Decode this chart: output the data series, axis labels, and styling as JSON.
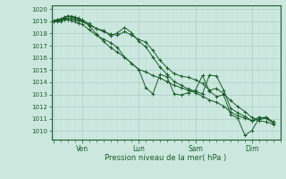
{
  "xlabel": "Pression niveau de la mer( hPa )",
  "bg_color": "#cce8de",
  "grid_color_major": "#aacccc",
  "grid_color_minor": "#bbdddd",
  "line_color": "#1a5c2a",
  "tick_label_color": "#1a5c2a",
  "axis_label_color": "#1a5c2a",
  "ylim": [
    1009.3,
    1020.3
  ],
  "yticks": [
    1010,
    1011,
    1012,
    1013,
    1014,
    1015,
    1016,
    1017,
    1018,
    1019,
    1020
  ],
  "day_ticks": [
    0,
    24,
    72,
    120,
    168
  ],
  "day_labels": [
    "",
    "Ven",
    "Lun",
    "Sam",
    "Dim"
  ],
  "xlim": [
    -2,
    192
  ],
  "lines": [
    [
      0,
      1019.0,
      3,
      1019.1,
      6,
      1019.15,
      9,
      1019.2,
      12,
      1019.25,
      15,
      1019.2,
      18,
      1019.15,
      21,
      1019.05,
      24,
      1018.95,
      30,
      1018.7,
      36,
      1018.4,
      42,
      1018.15,
      48,
      1017.95,
      54,
      1017.85,
      60,
      1018.15,
      66,
      1017.85,
      72,
      1017.5,
      78,
      1017.3,
      84,
      1016.6,
      90,
      1015.8,
      96,
      1015.2,
      102,
      1014.7,
      108,
      1014.5,
      114,
      1014.4,
      120,
      1014.2,
      126,
      1013.9,
      132,
      1013.35,
      138,
      1013.5,
      144,
      1013.05,
      150,
      1012.5,
      156,
      1012.0,
      162,
      1011.6,
      168,
      1011.1,
      174,
      1010.85,
      180,
      1010.75,
      186,
      1010.55
    ],
    [
      0,
      1019.05,
      3,
      1019.15,
      6,
      1019.2,
      9,
      1019.35,
      12,
      1019.45,
      15,
      1019.4,
      18,
      1019.35,
      21,
      1019.25,
      24,
      1019.1,
      30,
      1018.8,
      36,
      1018.4,
      42,
      1018.25,
      48,
      1017.8,
      54,
      1018.05,
      60,
      1018.5,
      66,
      1018.05,
      72,
      1017.35,
      78,
      1016.9,
      84,
      1016.05,
      90,
      1015.25,
      96,
      1014.65,
      102,
      1014.05,
      108,
      1013.75,
      114,
      1013.45,
      120,
      1013.25,
      126,
      1013.05,
      132,
      1014.6,
      138,
      1014.5,
      144,
      1013.35,
      150,
      1011.85,
      156,
      1011.5,
      162,
      1011.2,
      168,
      1010.85,
      174,
      1010.95,
      180,
      1011.05,
      186,
      1010.75
    ],
    [
      0,
      1019.0,
      3,
      1019.0,
      6,
      1019.0,
      9,
      1019.1,
      12,
      1019.15,
      15,
      1019.05,
      18,
      1018.95,
      21,
      1018.85,
      24,
      1018.75,
      30,
      1018.3,
      36,
      1017.85,
      42,
      1017.55,
      48,
      1017.25,
      54,
      1016.85,
      60,
      1016.05,
      66,
      1015.55,
      72,
      1015.05,
      78,
      1013.55,
      84,
      1013.05,
      90,
      1014.65,
      96,
      1014.45,
      102,
      1013.05,
      108,
      1012.95,
      114,
      1013.15,
      120,
      1013.35,
      126,
      1014.55,
      132,
      1013.25,
      138,
      1012.85,
      144,
      1012.95,
      150,
      1011.35,
      156,
      1011.05,
      162,
      1009.65,
      168,
      1010.05,
      174,
      1011.05,
      180,
      1011.15,
      186,
      1010.75
    ],
    [
      0,
      1019.0,
      3,
      1019.05,
      6,
      1019.1,
      9,
      1019.3,
      12,
      1019.4,
      15,
      1019.35,
      18,
      1019.25,
      21,
      1019.15,
      24,
      1019.05,
      30,
      1018.65,
      36,
      1017.95,
      42,
      1017.35,
      48,
      1016.85,
      54,
      1016.45,
      60,
      1016.05,
      66,
      1015.55,
      72,
      1015.05,
      78,
      1014.85,
      84,
      1014.55,
      90,
      1014.35,
      96,
      1014.05,
      102,
      1013.75,
      108,
      1013.55,
      114,
      1013.35,
      120,
      1013.15,
      126,
      1012.85,
      132,
      1012.55,
      138,
      1012.35,
      144,
      1012.05,
      150,
      1011.55,
      156,
      1011.25,
      162,
      1011.05,
      168,
      1010.85,
      174,
      1011.15,
      180,
      1011.05,
      186,
      1010.65
    ]
  ]
}
